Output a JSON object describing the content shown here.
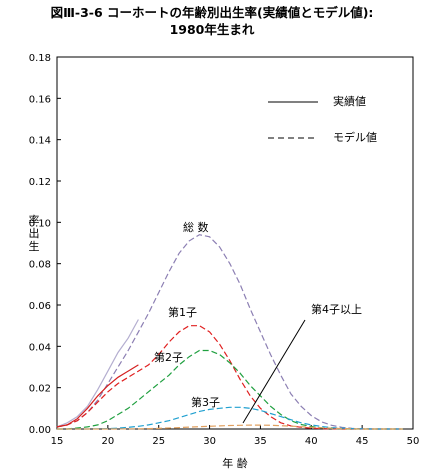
{
  "title_line1": "図Ⅲ-3-6 コーホートの年齢別出生率(実績値とモデル値):",
  "title_line2": "1980年生まれ",
  "chart_data": {
    "type": "line",
    "xlabel": "年 齢",
    "ylabel": "率出生",
    "xlim": [
      15,
      50
    ],
    "ylim": [
      0,
      0.18
    ],
    "xticks": [
      "15",
      "20",
      "25",
      "30",
      "35",
      "40",
      "45",
      "50"
    ],
    "yticks": [
      "0.00",
      "0.02",
      "0.04",
      "0.06",
      "0.08",
      "0.10",
      "0.12",
      "0.14",
      "0.16",
      "0.18"
    ],
    "legend": {
      "placement": "top-right",
      "actual_label": "実績値",
      "model_label": "モデル値"
    },
    "annotations": {
      "total": "総 数",
      "first": "第1子",
      "second": "第2子",
      "third": "第3子",
      "fourth": "第4子以上"
    },
    "series": [
      {
        "name": "総 数",
        "key": "total",
        "style": "dashed",
        "color": "#8c7fb3",
        "x": [
          15,
          16,
          17,
          18,
          19,
          20,
          21,
          22,
          23,
          24,
          25,
          26,
          27,
          28,
          29,
          30,
          31,
          32,
          33,
          34,
          35,
          36,
          37,
          38,
          39,
          40,
          41,
          42,
          43,
          44,
          45,
          46,
          47,
          48,
          49
        ],
        "values": [
          0.001,
          0.002,
          0.004,
          0.008,
          0.014,
          0.022,
          0.03,
          0.038,
          0.047,
          0.056,
          0.066,
          0.076,
          0.085,
          0.091,
          0.094,
          0.093,
          0.088,
          0.08,
          0.07,
          0.058,
          0.047,
          0.036,
          0.026,
          0.017,
          0.011,
          0.0065,
          0.0035,
          0.0018,
          0.0008,
          0.0003,
          0.0001,
          0,
          0,
          0,
          0
        ]
      },
      {
        "name": "総 数 実績値",
        "key": "total",
        "style": "solid",
        "color": "#b4aed0",
        "x": [
          15,
          16,
          17,
          18,
          19,
          20,
          21,
          22,
          23
        ],
        "values": [
          0.001,
          0.003,
          0.006,
          0.011,
          0.019,
          0.028,
          0.037,
          0.044,
          0.053
        ]
      },
      {
        "name": "第1子",
        "key": "first",
        "style": "dashed",
        "color": "#e02020",
        "x": [
          15,
          16,
          17,
          18,
          19,
          20,
          21,
          22,
          23,
          24,
          25,
          26,
          27,
          28,
          29,
          30,
          31,
          32,
          33,
          34,
          35,
          36,
          37,
          38,
          39,
          40,
          41,
          42,
          43,
          44,
          45,
          46,
          47,
          48,
          49
        ],
        "values": [
          0.001,
          0.002,
          0.004,
          0.008,
          0.013,
          0.018,
          0.022,
          0.025,
          0.028,
          0.031,
          0.036,
          0.042,
          0.047,
          0.05,
          0.05,
          0.047,
          0.041,
          0.033,
          0.024,
          0.016,
          0.01,
          0.006,
          0.003,
          0.0015,
          0.0008,
          0.0004,
          0.0002,
          0.0001,
          0,
          0,
          0,
          0,
          0,
          0,
          0
        ]
      },
      {
        "name": "第1子 実績値",
        "key": "first",
        "style": "solid",
        "color": "#d42020",
        "x": [
          15,
          16,
          17,
          18,
          19,
          20,
          21,
          22,
          23
        ],
        "values": [
          0.001,
          0.002,
          0.005,
          0.01,
          0.016,
          0.021,
          0.025,
          0.028,
          0.031
        ]
      },
      {
        "name": "第2子",
        "key": "second",
        "style": "dashed",
        "color": "#20a040",
        "x": [
          15,
          16,
          17,
          18,
          19,
          20,
          21,
          22,
          23,
          24,
          25,
          26,
          27,
          28,
          29,
          30,
          31,
          32,
          33,
          34,
          35,
          36,
          37,
          38,
          39,
          40,
          41,
          42,
          43,
          44,
          45,
          46,
          47,
          48,
          49
        ],
        "values": [
          0,
          0,
          0.0005,
          0.001,
          0.002,
          0.004,
          0.007,
          0.01,
          0.014,
          0.018,
          0.022,
          0.026,
          0.031,
          0.035,
          0.038,
          0.038,
          0.036,
          0.032,
          0.027,
          0.021,
          0.016,
          0.011,
          0.007,
          0.004,
          0.0022,
          0.0012,
          0.0006,
          0.0003,
          0.0001,
          0,
          0,
          0,
          0,
          0,
          0
        ]
      },
      {
        "name": "第3子",
        "key": "third",
        "style": "dashed",
        "color": "#20a0d0",
        "x": [
          15,
          16,
          17,
          18,
          19,
          20,
          21,
          22,
          23,
          24,
          25,
          26,
          27,
          28,
          29,
          30,
          31,
          32,
          33,
          34,
          35,
          36,
          37,
          38,
          39,
          40,
          41,
          42,
          43,
          44,
          45,
          46,
          47,
          48,
          49
        ],
        "values": [
          0,
          0,
          0,
          0,
          0.0001,
          0.0002,
          0.0004,
          0.0008,
          0.0013,
          0.002,
          0.003,
          0.004,
          0.0055,
          0.007,
          0.0085,
          0.0095,
          0.01,
          0.0105,
          0.0105,
          0.01,
          0.009,
          0.0075,
          0.006,
          0.0045,
          0.003,
          0.002,
          0.0012,
          0.0007,
          0.0004,
          0.0002,
          0.0001,
          0,
          0,
          0,
          0
        ]
      },
      {
        "name": "第4子以上",
        "key": "fourth",
        "style": "dashed",
        "color": "#e0a060",
        "x": [
          15,
          16,
          17,
          18,
          19,
          20,
          21,
          22,
          23,
          24,
          25,
          26,
          27,
          28,
          29,
          30,
          31,
          32,
          33,
          34,
          35,
          36,
          37,
          38,
          39,
          40,
          41,
          42,
          43,
          44,
          45,
          46,
          47,
          48,
          49
        ],
        "values": [
          0,
          0,
          0,
          0,
          0,
          0,
          0,
          0.0001,
          0.0001,
          0.0002,
          0.0003,
          0.0005,
          0.0007,
          0.0009,
          0.0011,
          0.0013,
          0.0015,
          0.0017,
          0.0018,
          0.0019,
          0.0019,
          0.0018,
          0.0016,
          0.0014,
          0.0011,
          0.0008,
          0.0006,
          0.0004,
          0.0002,
          0.0001,
          0,
          0,
          0,
          0,
          0
        ]
      }
    ]
  }
}
